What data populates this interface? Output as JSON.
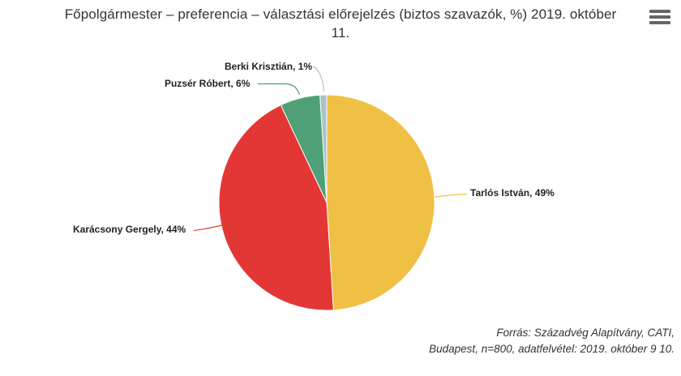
{
  "header": {
    "title_lines": [
      "Főpolgármester – preferencia – választási előrejelzés (biztos szavazók, %) 2019. október",
      "11."
    ],
    "menu_icon": "hamburger-icon"
  },
  "chart_data": {
    "type": "pie",
    "title": "Főpolgármester – preferencia – választási előrejelzés (biztos szavazók, %) 2019. október 11.",
    "direction": "clockwise",
    "start_angle_deg": 0,
    "border_color": "#FFFFFF",
    "slices": [
      {
        "name": "Tarlós István",
        "value": 49,
        "label": "Tarlós István, 49%",
        "color": "#F0C045"
      },
      {
        "name": "Karácsony Gergely",
        "value": 44,
        "label": "Karácsony Gergely, 44%",
        "color": "#E23735"
      },
      {
        "name": "Puzsér Róbert",
        "value": 6,
        "label": "Puzsér Róbert, 6%",
        "color": "#4FA077"
      },
      {
        "name": "Berki Krisztián",
        "value": 1,
        "label": "Berki Krisztián, 1%",
        "color": "#A9C2CC"
      }
    ]
  },
  "footer": {
    "lines": [
      "Forrás: Századvég Alapítvány, CATI,",
      "Budapest, n=800, adatfelvétel: 2019. október 9 10."
    ]
  }
}
